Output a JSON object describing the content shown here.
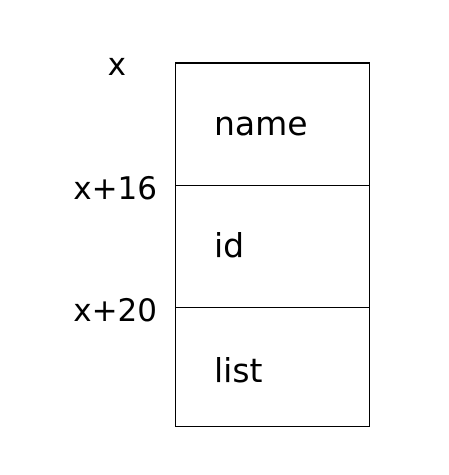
{
  "offsets": [
    "x",
    "x+16",
    "x+20"
  ],
  "fields": [
    "name",
    "id",
    "list"
  ]
}
